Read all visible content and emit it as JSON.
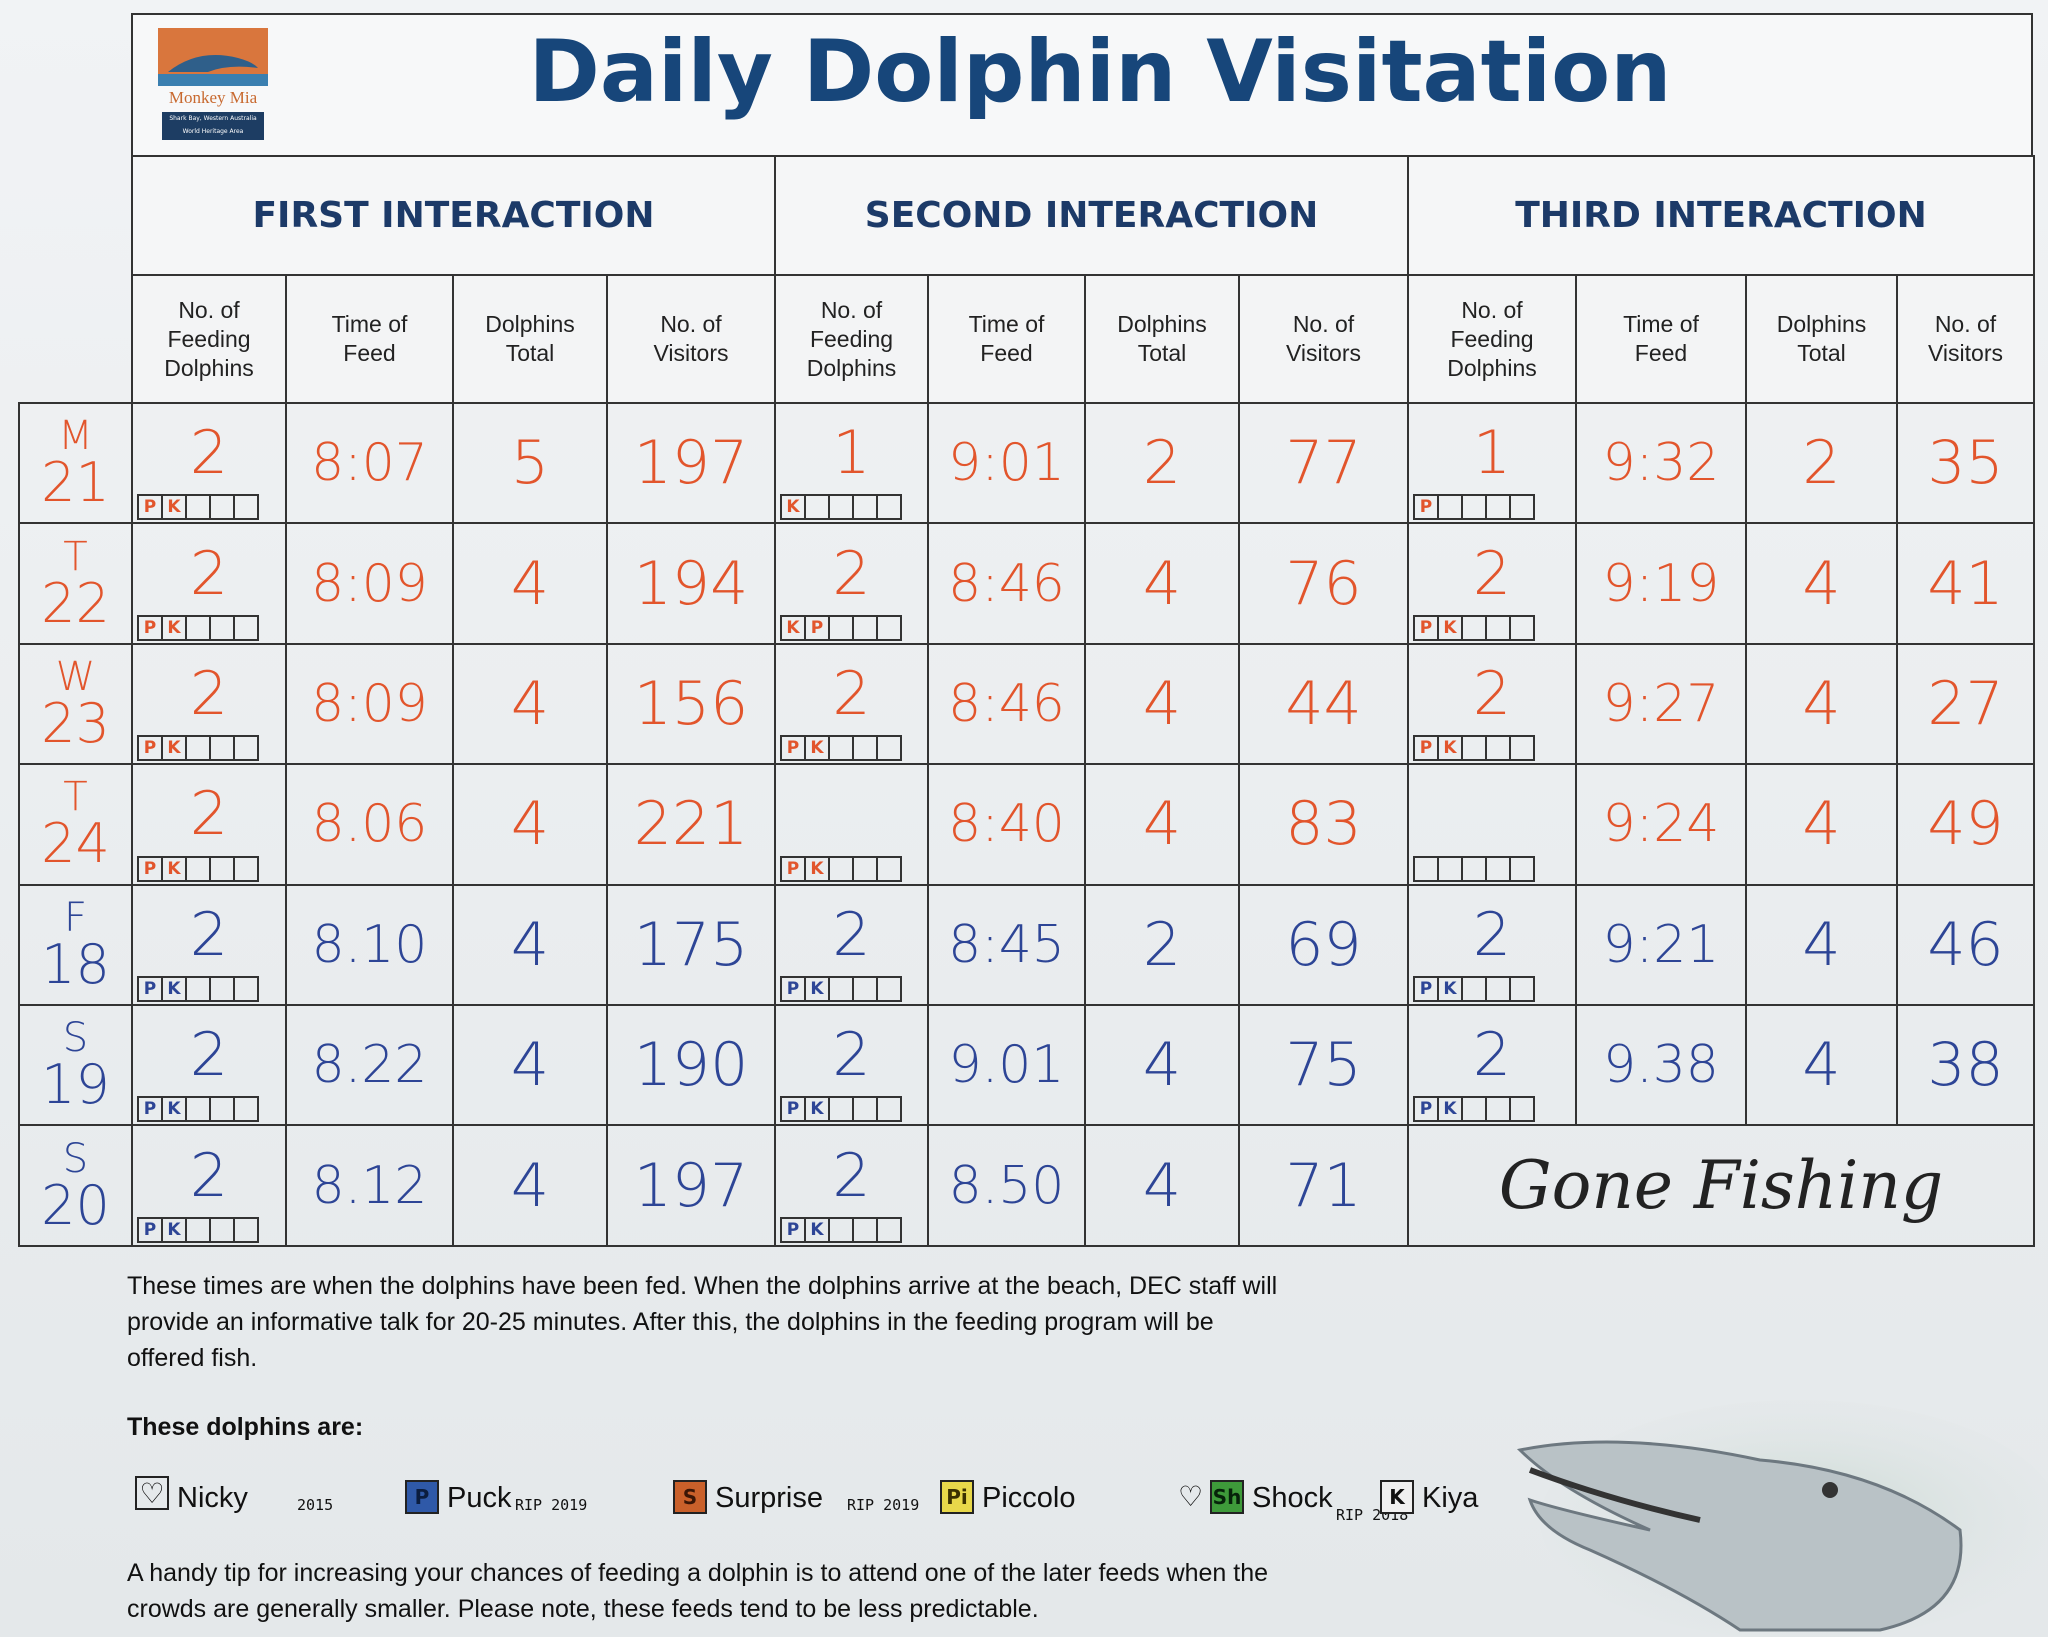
{
  "header": {
    "title": "Daily Dolphin Visitation",
    "logo": {
      "name": "Monkey Mia",
      "lines": [
        "Shark Bay, Western Australia",
        "World Heritage Area"
      ]
    }
  },
  "table": {
    "groups": [
      "FIRST INTERACTION",
      "SECOND INTERACTION",
      "THIRD INTERACTION"
    ],
    "columns": [
      "No. of Feeding Dolphins",
      "Time of Feed",
      "Dolphins Total",
      "No. of Visitors"
    ],
    "rows": [
      {
        "day": "M",
        "date": 21,
        "color": "#e2552c",
        "interactions": [
          {
            "feeding": 2,
            "time": "8:07",
            "total": 5,
            "visitors": 197,
            "tags": [
              "P",
              "K"
            ]
          },
          {
            "feeding": 1,
            "time": "9:01",
            "total": 2,
            "visitors": 77,
            "tags": [
              "K"
            ]
          },
          {
            "feeding": 1,
            "time": "9:32",
            "total": 2,
            "visitors": 35,
            "tags": [
              "P"
            ]
          }
        ]
      },
      {
        "day": "T",
        "date": 22,
        "color": "#e2552c",
        "interactions": [
          {
            "feeding": 2,
            "time": "8:09",
            "total": 4,
            "visitors": 194,
            "tags": [
              "P",
              "K"
            ]
          },
          {
            "feeding": 2,
            "time": "8:46",
            "total": 4,
            "visitors": 76,
            "tags": [
              "K",
              "P"
            ]
          },
          {
            "feeding": 2,
            "time": "9:19",
            "total": 4,
            "visitors": 41,
            "tags": [
              "P",
              "K"
            ]
          }
        ]
      },
      {
        "day": "W",
        "date": 23,
        "color": "#e2552c",
        "interactions": [
          {
            "feeding": 2,
            "time": "8:09",
            "total": 4,
            "visitors": 156,
            "tags": [
              "P",
              "K"
            ]
          },
          {
            "feeding": 2,
            "time": "8:46",
            "total": 4,
            "visitors": 44,
            "tags": [
              "P",
              "K"
            ]
          },
          {
            "feeding": 2,
            "time": "9:27",
            "total": 4,
            "visitors": 27,
            "tags": [
              "P",
              "K"
            ]
          }
        ]
      },
      {
        "day": "T",
        "date": 24,
        "color": "#e2552c",
        "interactions": [
          {
            "feeding": 2,
            "time": "8.06",
            "total": 4,
            "visitors": 221,
            "tags": [
              "P",
              "K"
            ]
          },
          {
            "time": "8:40",
            "total": 4,
            "visitors": 83,
            "tags": [
              "P",
              "K"
            ]
          },
          {
            "time": "9:24",
            "total": 4,
            "visitors": 49
          }
        ]
      },
      {
        "day": "F",
        "date": 18,
        "color": "#2d4596",
        "interactions": [
          {
            "feeding": 2,
            "time": "8.10",
            "total": 4,
            "visitors": 175,
            "tags": [
              "P",
              "K"
            ]
          },
          {
            "feeding": 2,
            "time": "8:45",
            "total": 2,
            "visitors": 69,
            "tags": [
              "P",
              "K"
            ]
          },
          {
            "feeding": 2,
            "time": "9:21",
            "total": 4,
            "visitors": 46,
            "tags": [
              "P",
              "K"
            ]
          }
        ]
      },
      {
        "day": "S",
        "date": 19,
        "color": "#2d4596",
        "interactions": [
          {
            "feeding": 2,
            "time": "8.22",
            "total": 4,
            "visitors": 190,
            "tags": [
              "P",
              "K"
            ]
          },
          {
            "feeding": 2,
            "time": "9.01",
            "total": 4,
            "visitors": 75,
            "tags": [
              "P",
              "K"
            ]
          },
          {
            "feeding": 2,
            "time": "9.38",
            "total": 4,
            "visitors": 38,
            "tags": [
              "P",
              "K"
            ]
          }
        ]
      },
      {
        "day": "S",
        "date": 20,
        "color": "#2d4596",
        "interactions": [
          {
            "feeding": 2,
            "time": "8.12",
            "total": 4,
            "visitors": 197,
            "tags": [
              "P",
              "K"
            ]
          },
          {
            "feeding": 2,
            "time": "8.50",
            "total": 4,
            "visitors": 71,
            "tags": [
              "P",
              "K"
            ]
          },
          {
            "note": "Gone Fishing"
          }
        ]
      }
    ]
  },
  "footer": {
    "paragraph": [
      "These times are when the dolphins have been fed. When the dolphins arrive at the beach, DEC staff will",
      "provide an informative talk for 20-25 minutes. After this, the dolphins in the feeding program will be",
      "offered fish."
    ],
    "dolphins_heading": "These dolphins are:",
    "dolphins": [
      {
        "name": "Nicky",
        "note": "2015"
      },
      {
        "badge": "P",
        "name": "Puck",
        "note": "RIP 2019"
      },
      {
        "badge": "S",
        "name": "Surprise",
        "note": "RIP 2019"
      },
      {
        "badge": "Pi",
        "name": "Piccolo"
      },
      {
        "badge": "Sh",
        "name": "Shock",
        "note": "RIP 2018"
      },
      {
        "badge": "K",
        "name": "Kiya"
      }
    ],
    "tip": [
      "A handy tip for increasing your chances of feeding a dolphin is to attend one of the later feeds when the",
      "crowds are generally smaller.  Please note, these feeds tend to be less predictable."
    ]
  }
}
